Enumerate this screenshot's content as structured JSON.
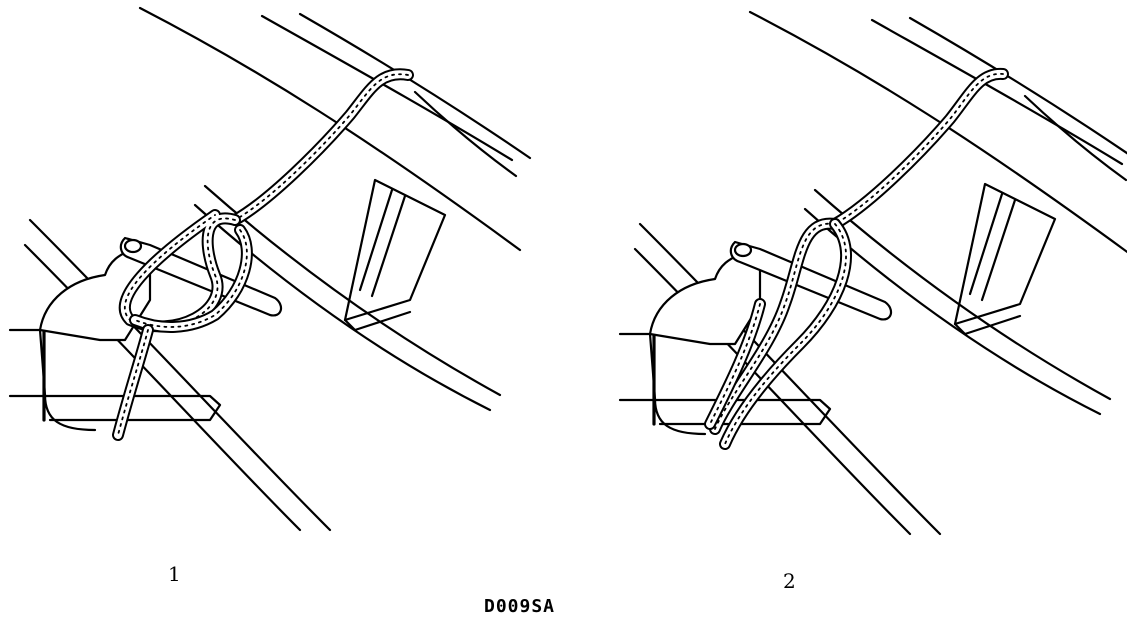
{
  "panels": [
    {
      "label": "1"
    },
    {
      "label": "2"
    }
  ],
  "figure_code": "D009SA",
  "colors": {
    "ink": "#000000",
    "paper": "#ffffff"
  }
}
